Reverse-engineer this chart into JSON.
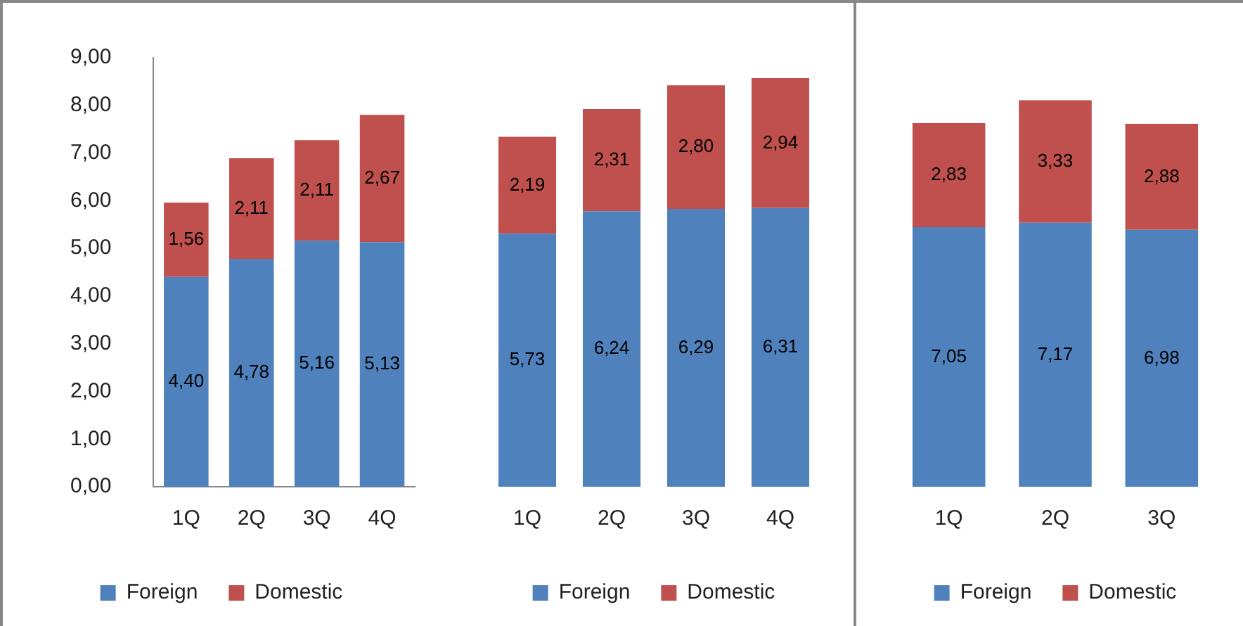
{
  "chart_data": [
    {
      "type": "bar",
      "stacked": true,
      "categories": [
        "1Q",
        "2Q",
        "3Q",
        "4Q"
      ],
      "ylim": [
        0,
        9
      ],
      "yticks": [
        {
          "value": 0,
          "label": "0,00"
        },
        {
          "value": 1,
          "label": "1,00"
        },
        {
          "value": 2,
          "label": "2,00"
        },
        {
          "value": 3,
          "label": "3,00"
        },
        {
          "value": 4,
          "label": "4,00"
        },
        {
          "value": 5,
          "label": "5,00"
        },
        {
          "value": 6,
          "label": "6,00"
        },
        {
          "value": 7,
          "label": "7,00"
        },
        {
          "value": 8,
          "label": "8,00"
        },
        {
          "value": 9,
          "label": "9,00"
        }
      ],
      "legend": "bottom",
      "series": [
        {
          "name": "Foreign",
          "color": "#4f81bd",
          "values": [
            4.4,
            4.78,
            5.16,
            5.13
          ],
          "value_labels": [
            "4,40",
            "4,78",
            "5,16",
            "5,13"
          ]
        },
        {
          "name": "Domestic",
          "color": "#c0504d",
          "values": [
            1.56,
            2.11,
            2.11,
            2.67
          ],
          "value_labels": [
            "1,56",
            "2,11",
            "2,11",
            "2,67"
          ]
        }
      ]
    },
    {
      "type": "bar",
      "stacked": true,
      "categories": [
        "1Q",
        "2Q",
        "3Q",
        "4Q"
      ],
      "tick_labels": "x",
      "legend": "bottom",
      "series": [
        {
          "name": "Foreign",
          "color": "#4f81bd",
          "values": [
            5.73,
            6.24,
            6.29,
            6.31
          ],
          "value_labels": [
            "5,73",
            "6,24",
            "6,29",
            "6,31"
          ]
        },
        {
          "name": "Domestic",
          "color": "#c0504d",
          "values": [
            2.19,
            2.31,
            2.8,
            2.94
          ],
          "value_labels": [
            "2,19",
            "2,31",
            "2,80",
            "2,94"
          ]
        }
      ]
    },
    {
      "type": "bar",
      "stacked": true,
      "categories": [
        "1Q",
        "2Q",
        "3Q"
      ],
      "tick_labels": "x",
      "legend": "bottom",
      "series": [
        {
          "name": "Foreign",
          "color": "#4f81bd",
          "values": [
            7.05,
            7.17,
            6.98
          ],
          "value_labels": [
            "7,05",
            "7,17",
            "6,98"
          ]
        },
        {
          "name": "Domestic",
          "color": "#c0504d",
          "values": [
            2.83,
            3.33,
            2.88
          ],
          "value_labels": [
            "2,83",
            "3,33",
            "2,88"
          ]
        }
      ]
    }
  ]
}
